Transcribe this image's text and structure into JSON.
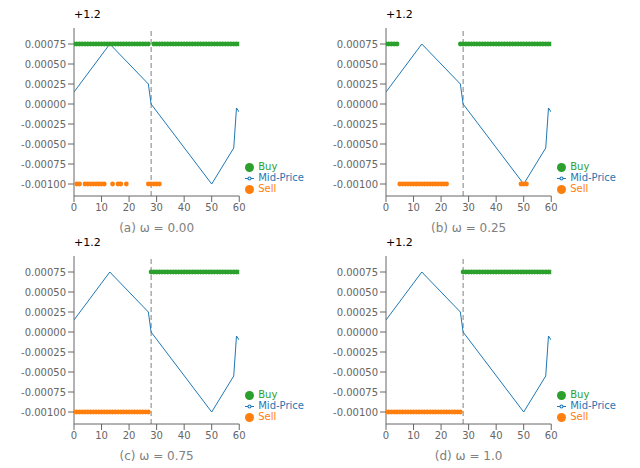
{
  "chart_data": [
    {
      "type": "line",
      "x_label": "(a) ω = 0.00",
      "annotations": [
        "+1.2"
      ],
      "xlim": [
        0,
        60
      ],
      "xticks": [
        0,
        10,
        20,
        30,
        40,
        50,
        60
      ],
      "ylim": [
        -0.00115,
        0.00095
      ],
      "yticks": [
        {
          "value": -0.001,
          "label": "-0.00100"
        },
        -0.00075,
        {
          "value": -0.0005,
          "label": "-0.00050"
        },
        -0.00025,
        {
          "value": 0,
          "label": "0.00000"
        },
        0.00025,
        {
          "value": 0.0005,
          "label": "0.00050"
        },
        0.00075
      ],
      "grid": false,
      "legend": "lower right",
      "vline": {
        "x": 28,
        "color": "gray",
        "line_style": "dashed"
      },
      "series": [
        {
          "name": "Mid-Price",
          "type": "line",
          "color": "#1f77b4",
          "x": [
            0,
            13,
            27,
            28,
            50,
            58,
            59,
            60
          ],
          "values": [
            0.00015,
            0.00075,
            0.00025,
            0.0,
            -0.001,
            -0.00055,
            -5e-05,
            -0.0001
          ]
        },
        {
          "name": "Sell",
          "type": "scatter",
          "color": "#ff7f0e",
          "x": [
            1,
            2,
            4,
            5,
            6,
            7,
            8,
            9,
            10,
            11,
            14,
            16,
            17,
            19,
            27,
            28,
            29,
            30,
            31
          ],
          "values": [
            -0.001,
            -0.001,
            -0.001,
            -0.001,
            -0.001,
            -0.001,
            -0.001,
            -0.001,
            -0.001,
            -0.001,
            -0.001,
            -0.001,
            -0.001,
            -0.001,
            -0.001,
            -0.001,
            -0.001,
            -0.001,
            -0.001
          ]
        },
        {
          "name": "Buy",
          "type": "scatter",
          "color": "#2ca02c",
          "x": [
            0,
            1,
            2,
            3,
            4,
            5,
            6,
            7,
            8,
            9,
            10,
            11,
            12,
            13,
            14,
            15,
            16,
            17,
            18,
            19,
            20,
            21,
            22,
            23,
            24,
            25,
            26,
            27,
            29,
            30,
            31,
            32,
            33,
            34,
            35,
            36,
            37,
            38,
            39,
            40,
            41,
            42,
            43,
            44,
            45,
            46,
            47,
            48,
            49,
            50,
            51,
            52,
            53,
            54,
            55,
            56,
            57,
            58,
            59,
            60
          ],
          "values": [
            0.00075,
            0.00075,
            0.00075,
            0.00075,
            0.00075,
            0.00075,
            0.00075,
            0.00075,
            0.00075,
            0.00075,
            0.00075,
            0.00075,
            0.00075,
            0.00075,
            0.00075,
            0.00075,
            0.00075,
            0.00075,
            0.00075,
            0.00075,
            0.00075,
            0.00075,
            0.00075,
            0.00075,
            0.00075,
            0.00075,
            0.00075,
            0.00075,
            0.00075,
            0.00075,
            0.00075,
            0.00075,
            0.00075,
            0.00075,
            0.00075,
            0.00075,
            0.00075,
            0.00075,
            0.00075,
            0.00075,
            0.00075,
            0.00075,
            0.00075,
            0.00075,
            0.00075,
            0.00075,
            0.00075,
            0.00075,
            0.00075,
            0.00075,
            0.00075,
            0.00075,
            0.00075,
            0.00075,
            0.00075,
            0.00075,
            0.00075,
            0.00075,
            0.00075,
            0.00075
          ]
        }
      ]
    },
    {
      "type": "line",
      "x_label": "(b) ω = 0.25",
      "annotations": [
        "+1.2"
      ],
      "xlim": [
        0,
        60
      ],
      "xticks": [
        0,
        10,
        20,
        30,
        40,
        50,
        60
      ],
      "ylim": [
        -0.00115,
        0.00095
      ],
      "yticks": [
        {
          "value": -0.001,
          "label": "-0.00100"
        },
        -0.00075,
        {
          "value": -0.0005,
          "label": "-0.00050"
        },
        -0.00025,
        {
          "value": 0,
          "label": "0.00000"
        },
        0.00025,
        {
          "value": 0.0005,
          "label": "0.00050"
        },
        0.00075
      ],
      "grid": false,
      "legend": "lower right",
      "vline": {
        "x": 28,
        "color": "gray",
        "line_style": "dashed"
      },
      "series": [
        {
          "name": "Mid-Price",
          "type": "line",
          "color": "#1f77b4",
          "x": [
            0,
            13,
            27,
            28,
            50,
            58,
            59,
            60
          ],
          "values": [
            0.00015,
            0.00075,
            0.00025,
            0.0,
            -0.001,
            -0.00055,
            -5e-05,
            -0.0001
          ]
        },
        {
          "name": "Sell",
          "type": "scatter",
          "color": "#ff7f0e",
          "x": [
            5,
            6,
            7,
            8,
            9,
            10,
            11,
            12,
            13,
            14,
            15,
            16,
            17,
            18,
            19,
            20,
            21,
            22,
            49,
            50,
            51
          ],
          "values": [
            -0.001,
            -0.001,
            -0.001,
            -0.001,
            -0.001,
            -0.001,
            -0.001,
            -0.001,
            -0.001,
            -0.001,
            -0.001,
            -0.001,
            -0.001,
            -0.001,
            -0.001,
            -0.001,
            -0.001,
            -0.001,
            -0.001,
            -0.001,
            -0.001
          ]
        },
        {
          "name": "Buy",
          "type": "scatter",
          "color": "#2ca02c",
          "x": [
            0,
            1,
            2,
            3,
            4,
            27,
            28,
            29,
            30,
            31,
            32,
            33,
            34,
            35,
            36,
            37,
            38,
            39,
            40,
            41,
            42,
            43,
            44,
            45,
            46,
            47,
            48,
            49,
            50,
            51,
            52,
            53,
            54,
            55,
            56,
            57,
            58,
            59,
            60
          ],
          "values": [
            0.00075,
            0.00075,
            0.00075,
            0.00075,
            0.00075,
            0.00075,
            0.00075,
            0.00075,
            0.00075,
            0.00075,
            0.00075,
            0.00075,
            0.00075,
            0.00075,
            0.00075,
            0.00075,
            0.00075,
            0.00075,
            0.00075,
            0.00075,
            0.00075,
            0.00075,
            0.00075,
            0.00075,
            0.00075,
            0.00075,
            0.00075,
            0.00075,
            0.00075,
            0.00075,
            0.00075,
            0.00075,
            0.00075,
            0.00075,
            0.00075,
            0.00075,
            0.00075,
            0.00075,
            0.00075
          ]
        }
      ]
    },
    {
      "type": "line",
      "x_label": "(c) ω = 0.75",
      "annotations": [
        "+1.2"
      ],
      "xlim": [
        0,
        60
      ],
      "xticks": [
        0,
        10,
        20,
        30,
        40,
        50,
        60
      ],
      "ylim": [
        -0.00115,
        0.00095
      ],
      "yticks": [
        {
          "value": -0.001,
          "label": "-0.00100"
        },
        -0.00075,
        {
          "value": -0.0005,
          "label": "-0.00050"
        },
        -0.00025,
        {
          "value": 0,
          "label": "0.00000"
        },
        0.00025,
        {
          "value": 0.0005,
          "label": "0.00050"
        },
        0.00075
      ],
      "grid": false,
      "legend": "lower right",
      "vline": {
        "x": 28,
        "color": "gray",
        "line_style": "dashed"
      },
      "series": [
        {
          "name": "Mid-Price",
          "type": "line",
          "color": "#1f77b4",
          "x": [
            0,
            13,
            27,
            28,
            50,
            58,
            59,
            60
          ],
          "values": [
            0.00015,
            0.00075,
            0.00025,
            0.0,
            -0.001,
            -0.00055,
            -5e-05,
            -0.0001
          ]
        },
        {
          "name": "Sell",
          "type": "scatter",
          "color": "#ff7f0e",
          "x": [
            0,
            1,
            2,
            3,
            4,
            5,
            6,
            7,
            8,
            9,
            10,
            11,
            12,
            13,
            14,
            15,
            16,
            17,
            18,
            19,
            20,
            21,
            22,
            23,
            24,
            25,
            26,
            27
          ],
          "values": [
            -0.001,
            -0.001,
            -0.001,
            -0.001,
            -0.001,
            -0.001,
            -0.001,
            -0.001,
            -0.001,
            -0.001,
            -0.001,
            -0.001,
            -0.001,
            -0.001,
            -0.001,
            -0.001,
            -0.001,
            -0.001,
            -0.001,
            -0.001,
            -0.001,
            -0.001,
            -0.001,
            -0.001,
            -0.001,
            -0.001,
            -0.001,
            -0.001
          ]
        },
        {
          "name": "Buy",
          "type": "scatter",
          "color": "#2ca02c",
          "x": [
            28,
            29,
            30,
            31,
            32,
            33,
            34,
            35,
            36,
            37,
            38,
            39,
            40,
            41,
            42,
            43,
            44,
            45,
            46,
            47,
            48,
            49,
            50,
            51,
            52,
            53,
            54,
            55,
            56,
            57,
            58,
            59,
            60
          ],
          "values": [
            0.00075,
            0.00075,
            0.00075,
            0.00075,
            0.00075,
            0.00075,
            0.00075,
            0.00075,
            0.00075,
            0.00075,
            0.00075,
            0.00075,
            0.00075,
            0.00075,
            0.00075,
            0.00075,
            0.00075,
            0.00075,
            0.00075,
            0.00075,
            0.00075,
            0.00075,
            0.00075,
            0.00075,
            0.00075,
            0.00075,
            0.00075,
            0.00075,
            0.00075,
            0.00075,
            0.00075,
            0.00075,
            0.00075
          ]
        }
      ]
    },
    {
      "type": "line",
      "x_label": "(d) ω = 1.0",
      "annotations": [
        "+1.2"
      ],
      "xlim": [
        0,
        60
      ],
      "xticks": [
        0,
        10,
        20,
        30,
        40,
        50,
        60
      ],
      "ylim": [
        -0.00115,
        0.00095
      ],
      "yticks": [
        {
          "value": -0.001,
          "label": "-0.00100"
        },
        -0.00075,
        {
          "value": -0.0005,
          "label": "-0.00050"
        },
        -0.00025,
        {
          "value": 0,
          "label": "0.00000"
        },
        0.00025,
        {
          "value": 0.0005,
          "label": "0.00050"
        },
        0.00075
      ],
      "grid": false,
      "legend": "lower right",
      "vline": {
        "x": 28,
        "color": "gray",
        "line_style": "dashed"
      },
      "series": [
        {
          "name": "Mid-Price",
          "type": "line",
          "color": "#1f77b4",
          "x": [
            0,
            13,
            27,
            28,
            50,
            58,
            59,
            60
          ],
          "values": [
            0.00015,
            0.00075,
            0.00025,
            0.0,
            -0.001,
            -0.00055,
            -5e-05,
            -0.0001
          ]
        },
        {
          "name": "Sell",
          "type": "scatter",
          "color": "#ff7f0e",
          "x": [
            0,
            1,
            2,
            3,
            4,
            5,
            6,
            7,
            8,
            9,
            10,
            11,
            12,
            13,
            14,
            15,
            16,
            17,
            18,
            19,
            20,
            21,
            22,
            23,
            24,
            25,
            26,
            27
          ],
          "values": [
            -0.001,
            -0.001,
            -0.001,
            -0.001,
            -0.001,
            -0.001,
            -0.001,
            -0.001,
            -0.001,
            -0.001,
            -0.001,
            -0.001,
            -0.001,
            -0.001,
            -0.001,
            -0.001,
            -0.001,
            -0.001,
            -0.001,
            -0.001,
            -0.001,
            -0.001,
            -0.001,
            -0.001,
            -0.001,
            -0.001,
            -0.001,
            -0.001
          ]
        },
        {
          "name": "Buy",
          "type": "scatter",
          "color": "#2ca02c",
          "x": [
            28,
            29,
            30,
            31,
            32,
            33,
            34,
            35,
            36,
            37,
            38,
            39,
            40,
            41,
            42,
            43,
            44,
            45,
            46,
            47,
            48,
            49,
            50,
            51,
            52,
            53,
            54,
            55,
            56,
            57,
            58,
            59,
            60
          ],
          "values": [
            0.00075,
            0.00075,
            0.00075,
            0.00075,
            0.00075,
            0.00075,
            0.00075,
            0.00075,
            0.00075,
            0.00075,
            0.00075,
            0.00075,
            0.00075,
            0.00075,
            0.00075,
            0.00075,
            0.00075,
            0.00075,
            0.00075,
            0.00075,
            0.00075,
            0.00075,
            0.00075,
            0.00075,
            0.00075,
            0.00075,
            0.00075,
            0.00075,
            0.00075,
            0.00075,
            0.00075,
            0.00075,
            0.00075
          ]
        }
      ]
    }
  ]
}
